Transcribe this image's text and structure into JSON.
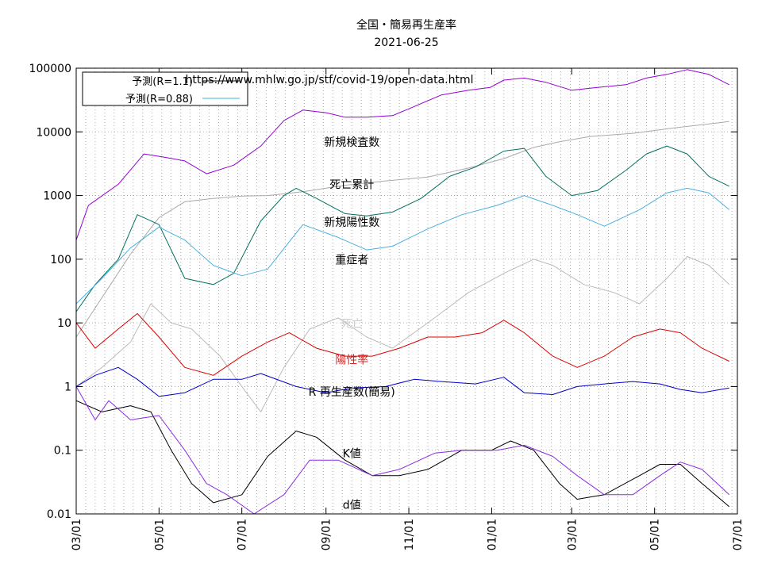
{
  "chart_data": {
    "type": "line",
    "title": "全国・簡易再生産率",
    "subtitle": "2021-06-25",
    "source_url": "https://www.mhlw.go.jp/stf/covid-19/open-data.html",
    "y_scale": "log",
    "ylim": [
      0.01,
      100000
    ],
    "xlim": [
      "2020-03-01",
      "2021-07-01"
    ],
    "y_tick_labels": [
      "0.01",
      "0.1",
      "1",
      "10",
      "100",
      "1000",
      "10000",
      "100000"
    ],
    "x_tick_labels": [
      "03/01",
      "05/01",
      "07/01",
      "09/01",
      "11/01",
      "01/01",
      "03/01",
      "05/01",
      "07/01"
    ],
    "legend": {
      "position": "top-left",
      "entries": [
        {
          "label": "予測(R=1.1)",
          "color": "#000000"
        },
        {
          "label": "予測(R=0.88)",
          "color": "#33bbdd"
        }
      ]
    },
    "grid": true,
    "series": [
      {
        "name": "新規検査数",
        "color": "#9400d3",
        "x": [
          "2020-03-01",
          "2020-03-10",
          "2020-04-01",
          "2020-04-20",
          "2020-05-05",
          "2020-05-20",
          "2020-06-05",
          "2020-06-25",
          "2020-07-15",
          "2020-08-01",
          "2020-08-15",
          "2020-09-01",
          "2020-09-15",
          "2020-10-01",
          "2020-10-20",
          "2020-11-05",
          "2020-11-25",
          "2020-12-15",
          "2020-12-31",
          "2021-01-10",
          "2021-01-25",
          "2021-02-10",
          "2021-03-01",
          "2021-03-20",
          "2021-04-10",
          "2021-04-25",
          "2021-05-10",
          "2021-05-25",
          "2021-06-10",
          "2021-06-25"
        ],
        "y": [
          200,
          700,
          1500,
          4500,
          4000,
          3500,
          2200,
          3000,
          6000,
          15000,
          22000,
          20000,
          17000,
          17000,
          18000,
          25000,
          38000,
          45000,
          50000,
          65000,
          70000,
          60000,
          45000,
          50000,
          55000,
          70000,
          80000,
          95000,
          80000,
          55000
        ]
      },
      {
        "name": "死亡累計",
        "color": "#aaaaaa",
        "x": [
          "2020-03-01",
          "2020-03-20",
          "2020-04-10",
          "2020-05-01",
          "2020-05-20",
          "2020-06-10",
          "2020-07-01",
          "2020-07-20",
          "2020-08-15",
          "2020-09-15",
          "2020-10-15",
          "2020-11-15",
          "2020-12-15",
          "2021-01-10",
          "2021-02-01",
          "2021-02-20",
          "2021-03-15",
          "2021-04-15",
          "2021-05-15",
          "2021-06-25"
        ],
        "y": [
          6,
          25,
          120,
          450,
          800,
          900,
          980,
          1000,
          1150,
          1450,
          1700,
          1950,
          2700,
          3800,
          5700,
          7000,
          8500,
          9500,
          11500,
          14500
        ]
      },
      {
        "name": "新規陽性数",
        "color": "#007060",
        "x": [
          "2020-03-01",
          "2020-03-15",
          "2020-04-01",
          "2020-04-15",
          "2020-05-01",
          "2020-05-20",
          "2020-06-10",
          "2020-06-25",
          "2020-07-15",
          "2020-08-01",
          "2020-08-10",
          "2020-08-25",
          "2020-09-15",
          "2020-10-01",
          "2020-10-20",
          "2020-11-10",
          "2020-12-01",
          "2020-12-20",
          "2021-01-10",
          "2021-01-25",
          "2021-02-10",
          "2021-03-01",
          "2021-03-20",
          "2021-04-10",
          "2021-04-25",
          "2021-05-10",
          "2021-05-25",
          "2021-06-10",
          "2021-06-25"
        ],
        "y": [
          15,
          40,
          100,
          500,
          350,
          50,
          40,
          60,
          400,
          1000,
          1300,
          900,
          520,
          480,
          550,
          900,
          2000,
          2800,
          5000,
          5500,
          2000,
          1000,
          1200,
          2500,
          4500,
          6000,
          4500,
          2000,
          1400
        ]
      },
      {
        "name": "重症者",
        "color": "#4ab0e0",
        "x": [
          "2020-03-01",
          "2020-03-20",
          "2020-04-10",
          "2020-05-01",
          "2020-05-20",
          "2020-06-10",
          "2020-07-01",
          "2020-07-20",
          "2020-08-15",
          "2020-09-10",
          "2020-10-01",
          "2020-10-20",
          "2020-11-15",
          "2020-12-10",
          "2021-01-05",
          "2021-01-25",
          "2021-02-15",
          "2021-03-05",
          "2021-03-25",
          "2021-04-20",
          "2021-05-10",
          "2021-05-25",
          "2021-06-10",
          "2021-06-25"
        ],
        "y": [
          20,
          50,
          150,
          320,
          200,
          80,
          55,
          70,
          350,
          220,
          140,
          160,
          300,
          500,
          700,
          1000,
          700,
          500,
          330,
          600,
          1100,
          1300,
          1100,
          600
        ]
      },
      {
        "name": "死亡",
        "color": "#bbbbbb",
        "x": [
          "2020-03-01",
          "2020-03-20",
          "2020-04-10",
          "2020-04-25",
          "2020-05-10",
          "2020-05-25",
          "2020-06-15",
          "2020-07-01",
          "2020-07-15",
          "2020-08-01",
          "2020-08-20",
          "2020-09-10",
          "2020-10-01",
          "2020-10-20",
          "2020-11-15",
          "2020-12-15",
          "2021-01-10",
          "2021-02-01",
          "2021-02-15",
          "2021-03-10",
          "2021-04-01",
          "2021-04-20",
          "2021-05-10",
          "2021-05-25",
          "2021-06-10",
          "2021-06-25"
        ],
        "y": [
          1,
          2,
          5,
          20,
          10,
          8,
          3,
          1,
          0.4,
          2,
          8,
          12,
          6,
          4,
          10,
          30,
          60,
          100,
          80,
          40,
          30,
          20,
          50,
          110,
          80,
          40
        ]
      },
      {
        "name": "陽性率",
        "color": "#dd0000",
        "x": [
          "2020-03-01",
          "2020-03-15",
          "2020-04-01",
          "2020-04-15",
          "2020-05-01",
          "2020-05-20",
          "2020-06-10",
          "2020-07-01",
          "2020-07-20",
          "2020-08-05",
          "2020-08-25",
          "2020-09-15",
          "2020-10-05",
          "2020-10-25",
          "2020-11-15",
          "2020-12-05",
          "2020-12-25",
          "2021-01-10",
          "2021-01-25",
          "2021-02-15",
          "2021-03-05",
          "2021-03-25",
          "2021-04-15",
          "2021-05-05",
          "2021-05-20",
          "2021-06-05",
          "2021-06-25"
        ],
        "y": [
          10,
          4,
          8,
          14,
          6,
          2,
          1.5,
          3,
          5,
          7,
          4,
          3,
          3,
          4,
          6,
          6,
          7,
          11,
          7,
          3,
          2,
          3,
          6,
          8,
          7,
          4,
          2.5
        ]
      },
      {
        "name": "R 再生産数(簡易)",
        "color": "#0000cc",
        "x": [
          "2020-03-01",
          "2020-03-15",
          "2020-04-01",
          "2020-04-15",
          "2020-05-01",
          "2020-05-20",
          "2020-06-10",
          "2020-07-01",
          "2020-07-15",
          "2020-08-10",
          "2020-09-01",
          "2020-09-20",
          "2020-10-15",
          "2020-11-05",
          "2020-11-25",
          "2020-12-20",
          "2021-01-10",
          "2021-01-25",
          "2021-02-15",
          "2021-03-05",
          "2021-03-25",
          "2021-04-15",
          "2021-05-05",
          "2021-05-20",
          "2021-06-05",
          "2021-06-25"
        ],
        "y": [
          1.0,
          1.5,
          2.0,
          1.3,
          0.7,
          0.8,
          1.3,
          1.3,
          1.6,
          1.0,
          0.8,
          0.95,
          1.0,
          1.3,
          1.2,
          1.1,
          1.4,
          0.8,
          0.75,
          1.0,
          1.1,
          1.2,
          1.1,
          0.9,
          0.8,
          0.95
        ]
      },
      {
        "name": "K値",
        "color": "#000000",
        "x": [
          "2020-03-01",
          "2020-03-20",
          "2020-04-10",
          "2020-04-25",
          "2020-05-10",
          "2020-05-25",
          "2020-06-10",
          "2020-07-01",
          "2020-07-20",
          "2020-08-10",
          "2020-08-25",
          "2020-09-15",
          "2020-10-05",
          "2020-10-25",
          "2020-11-15",
          "2020-12-10",
          "2021-01-01",
          "2021-01-15",
          "2021-02-01",
          "2021-02-20",
          "2021-03-05",
          "2021-03-25",
          "2021-04-20",
          "2021-05-05",
          "2021-05-20",
          "2021-06-05",
          "2021-06-25"
        ],
        "y": [
          0.6,
          0.4,
          0.5,
          0.4,
          0.1,
          0.03,
          0.015,
          0.02,
          0.08,
          0.2,
          0.16,
          0.07,
          0.04,
          0.04,
          0.05,
          0.1,
          0.1,
          0.14,
          0.1,
          0.03,
          0.017,
          0.02,
          0.04,
          0.06,
          0.06,
          0.03,
          0.013
        ]
      },
      {
        "name": "d値",
        "color": "#8a2be2",
        "x": [
          "2020-03-01",
          "2020-03-15",
          "2020-03-25",
          "2020-04-10",
          "2020-05-01",
          "2020-05-20",
          "2020-06-05",
          "2020-06-20",
          "2020-07-10",
          "2020-08-01",
          "2020-08-20",
          "2020-09-10",
          "2020-10-05",
          "2020-10-25",
          "2020-11-20",
          "2020-12-10",
          "2021-01-05",
          "2021-01-25",
          "2021-02-15",
          "2021-03-05",
          "2021-03-25",
          "2021-04-15",
          "2021-05-05",
          "2021-05-20",
          "2021-06-05",
          "2021-06-25"
        ],
        "y": [
          1.0,
          0.3,
          0.6,
          0.3,
          0.35,
          0.1,
          0.03,
          0.02,
          0.01,
          0.02,
          0.07,
          0.07,
          0.04,
          0.05,
          0.09,
          0.1,
          0.1,
          0.12,
          0.08,
          0.04,
          0.02,
          0.02,
          0.04,
          0.065,
          0.05,
          0.02
        ]
      }
    ],
    "annotations": [
      {
        "text": "新規検査数",
        "x": "2020-09-20",
        "y": 6000,
        "color": "#000000"
      },
      {
        "text": "死亡累計",
        "x": "2020-09-20",
        "y": 1300,
        "color": "#000000"
      },
      {
        "text": "新規陽性数",
        "x": "2020-09-20",
        "y": 330,
        "color": "#000000"
      },
      {
        "text": "重症者",
        "x": "2020-09-20",
        "y": 85,
        "color": "#000000"
      },
      {
        "text": "死亡",
        "x": "2020-09-20",
        "y": 8.5,
        "color": "#cccccc"
      },
      {
        "text": "陽性率",
        "x": "2020-09-20",
        "y": 2.3,
        "color": "#dd2222"
      },
      {
        "text": "R 再生産数(簡易)",
        "x": "2020-09-20",
        "y": 0.72,
        "color": "#000000"
      },
      {
        "text": "K値",
        "x": "2020-09-20",
        "y": 0.078,
        "color": "#000000"
      },
      {
        "text": "d値",
        "x": "2020-09-20",
        "y": 0.012,
        "color": "#000000"
      }
    ]
  }
}
